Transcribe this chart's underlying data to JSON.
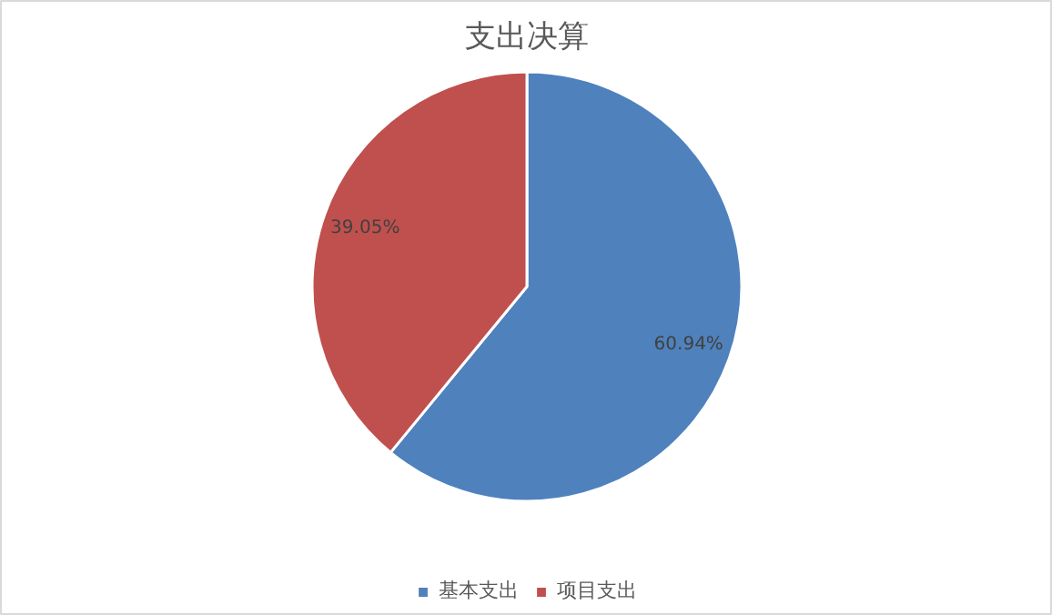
{
  "chart_data": {
    "type": "pie",
    "title": "支出决算",
    "categories": [
      "基本支出",
      "项目支出"
    ],
    "values": [
      60.94,
      39.05
    ],
    "colors": [
      "#4f81bd",
      "#c0504d"
    ],
    "value_labels": [
      "60.94%",
      "39.05%"
    ],
    "legend": "bottom"
  }
}
